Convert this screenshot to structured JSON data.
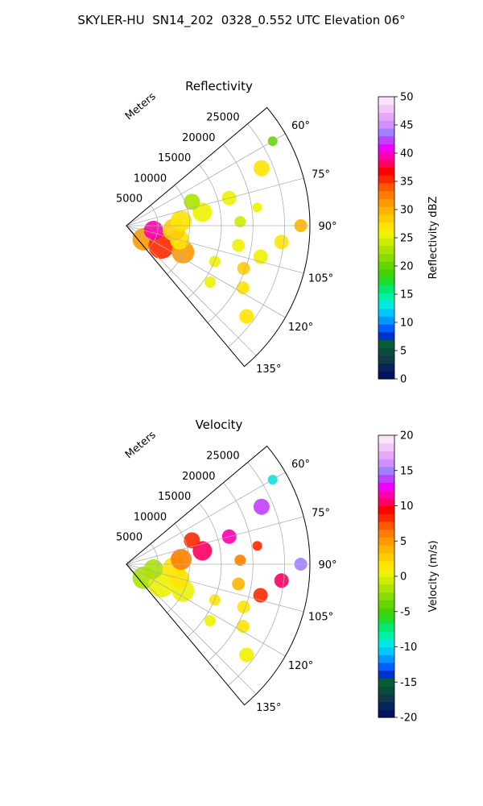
{
  "suptitle": "SKYLER-HU  SN14_202  0328_0.552 UTC Elevation 06°",
  "chart_data": [
    {
      "type": "heatmap",
      "title": "Reflectivity",
      "projection": "polar sector",
      "range_label": "Meters",
      "range_ticks": [
        5000,
        10000,
        15000,
        20000,
        25000
      ],
      "range_max": 29000,
      "azimuth_range_deg": [
        50,
        140
      ],
      "azimuth_ticks": [
        "60°",
        "75°",
        "90°",
        "105°",
        "120°",
        "135°"
      ],
      "grid": true,
      "colorbar": {
        "label": "Reflectivity dBZ",
        "min": 0,
        "max": 50,
        "ticks": [
          0,
          5,
          10,
          15,
          20,
          25,
          30,
          35,
          40,
          45,
          50
        ],
        "colors": [
          "#04145e",
          "#08245e",
          "#0e3a4a",
          "#0b4d3d",
          "#0a5c3b",
          "#0030d0",
          "#0060ff",
          "#0098ff",
          "#00c8ff",
          "#00e8e0",
          "#00f0a8",
          "#00e870",
          "#22dc2a",
          "#44d200",
          "#66d600",
          "#88dd00",
          "#aae400",
          "#ccec00",
          "#eef200",
          "#ffe400",
          "#ffcc00",
          "#ffb400",
          "#ff9a00",
          "#ff7e00",
          "#ff5a00",
          "#ff2800",
          "#ff0000",
          "#ff0060",
          "#ff00b0",
          "#f000ff",
          "#c040ff",
          "#a080ff",
          "#d090ff",
          "#e6a8f6",
          "#f2c8f8",
          "#fbe4fb"
        ]
      }
    },
    {
      "type": "heatmap",
      "title": "Velocity",
      "projection": "polar sector",
      "range_label": "Meters",
      "range_ticks": [
        5000,
        10000,
        15000,
        20000,
        25000
      ],
      "range_max": 29000,
      "azimuth_range_deg": [
        50,
        140
      ],
      "azimuth_ticks": [
        "60°",
        "75°",
        "90°",
        "105°",
        "120°",
        "135°"
      ],
      "grid": true,
      "colorbar": {
        "label": "Velocity (m/s)",
        "min": -20,
        "max": 20,
        "ticks": [
          -20,
          -15,
          -10,
          -5,
          0,
          5,
          10,
          15,
          20
        ],
        "colors": [
          "#04145e",
          "#08245e",
          "#0e3a4a",
          "#0b4d3d",
          "#0a5c3b",
          "#0030d0",
          "#0060ff",
          "#0098ff",
          "#00c8ff",
          "#00e8e0",
          "#00f0a8",
          "#00e870",
          "#22dc2a",
          "#44d200",
          "#66d600",
          "#88dd00",
          "#aae400",
          "#ccec00",
          "#eef200",
          "#ffe400",
          "#ffcc00",
          "#ffb400",
          "#ff9a00",
          "#ff7e00",
          "#ff5a00",
          "#ff2800",
          "#ff0000",
          "#ff0060",
          "#ff00b0",
          "#f000ff",
          "#c040ff",
          "#a080ff",
          "#d090ff",
          "#e6a8f6",
          "#f2c8f8",
          "#fbe4fb"
        ]
      }
    }
  ]
}
